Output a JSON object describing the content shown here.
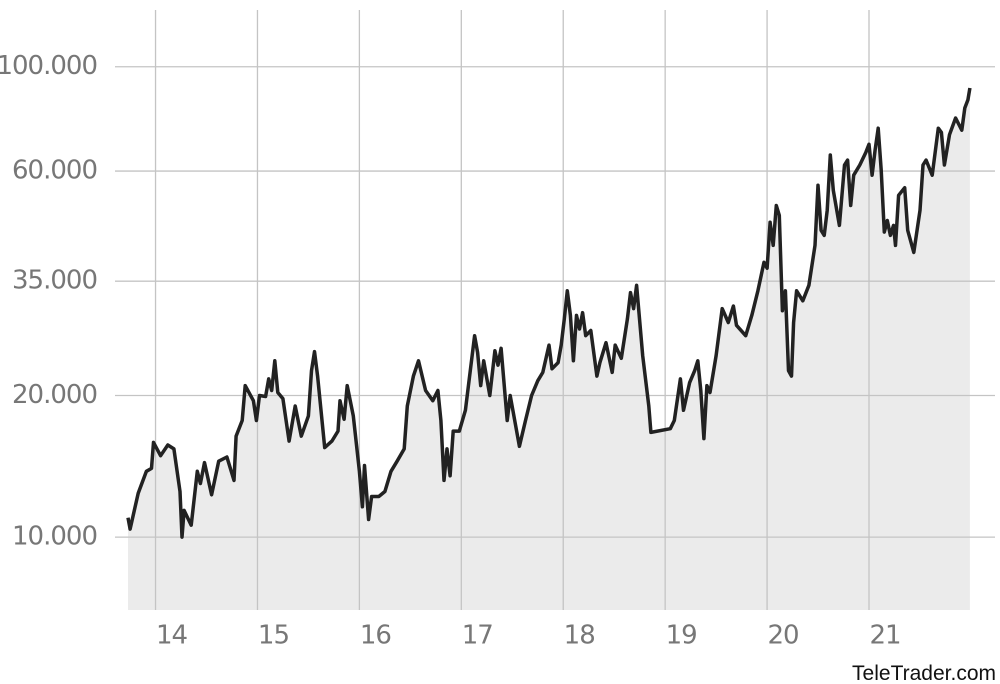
{
  "chart_data": {
    "type": "area-line",
    "watermark": "TeleTrader.com",
    "x": [
      13.73,
      13.75,
      13.83,
      13.91,
      13.96,
      13.98,
      14.05,
      14.12,
      14.18,
      14.24,
      14.26,
      14.28,
      14.35,
      14.41,
      14.44,
      14.48,
      14.55,
      14.62,
      14.7,
      14.77,
      14.79,
      14.85,
      14.88,
      14.96,
      14.99,
      15.02,
      15.08,
      15.11,
      15.14,
      15.17,
      15.2,
      15.25,
      15.31,
      15.37,
      15.43,
      15.5,
      15.53,
      15.56,
      15.59,
      15.66,
      15.73,
      15.79,
      15.81,
      15.85,
      15.88,
      15.94,
      16.0,
      16.03,
      16.05,
      16.09,
      16.12,
      16.19,
      16.25,
      16.31,
      16.37,
      16.44,
      16.47,
      16.53,
      16.58,
      16.65,
      16.72,
      16.77,
      16.8,
      16.83,
      16.86,
      16.89,
      16.92,
      16.98,
      17.04,
      17.1,
      17.13,
      17.16,
      17.19,
      17.22,
      17.28,
      17.33,
      17.36,
      17.39,
      17.45,
      17.48,
      17.57,
      17.63,
      17.69,
      17.75,
      17.8,
      17.86,
      17.89,
      17.95,
      17.98,
      18.01,
      18.04,
      18.07,
      18.1,
      18.13,
      18.16,
      18.19,
      18.22,
      18.27,
      18.33,
      18.36,
      18.42,
      18.48,
      18.51,
      18.57,
      18.63,
      18.66,
      18.69,
      18.72,
      18.78,
      18.84,
      18.86,
      19.05,
      19.09,
      19.15,
      19.18,
      19.24,
      19.29,
      19.32,
      19.35,
      19.38,
      19.41,
      19.44,
      19.5,
      19.56,
      19.62,
      19.67,
      19.7,
      19.79,
      19.85,
      19.91,
      19.97,
      20.0,
      20.03,
      20.06,
      20.09,
      20.12,
      20.15,
      20.18,
      20.21,
      20.24,
      20.26,
      20.29,
      20.35,
      20.41,
      20.47,
      20.5,
      20.53,
      20.56,
      20.59,
      20.62,
      20.65,
      20.71,
      20.76,
      20.79,
      20.82,
      20.85,
      20.91,
      20.97,
      21.0,
      21.03,
      21.06,
      21.09,
      21.12,
      21.15,
      21.18,
      21.21,
      21.24,
      21.26,
      21.29,
      21.35,
      21.38,
      21.44,
      21.5,
      21.53,
      21.56,
      21.62,
      21.68,
      21.71,
      21.74,
      21.79,
      21.85,
      21.91,
      21.94,
      21.97,
      21.99
    ],
    "series": [
      {
        "color": "#222222",
        "fill": "#ebebeb",
        "values": [
          11000,
          10400,
          12400,
          13800,
          14000,
          15900,
          14900,
          15700,
          15400,
          12500,
          10000,
          11400,
          10600,
          13800,
          13000,
          14400,
          12300,
          14500,
          14800,
          13200,
          16400,
          17700,
          21000,
          19500,
          17700,
          20000,
          19900,
          21700,
          20500,
          23700,
          20300,
          19700,
          16000,
          19000,
          16400,
          18100,
          22600,
          24800,
          22000,
          15500,
          16000,
          16800,
          19500,
          17800,
          21000,
          18100,
          13800,
          11600,
          14200,
          10900,
          12200,
          12200,
          12500,
          13800,
          14500,
          15400,
          19000,
          22000,
          23700,
          20500,
          19500,
          20500,
          17700,
          13200,
          15400,
          13500,
          16800,
          16800,
          18600,
          23700,
          26800,
          24700,
          21000,
          23700,
          20000,
          24900,
          23200,
          25200,
          17700,
          20000,
          15600,
          17700,
          20000,
          21500,
          22400,
          25600,
          22800,
          23500,
          25600,
          29100,
          33400,
          29600,
          23700,
          29600,
          27700,
          30000,
          26800,
          27500,
          22000,
          23500,
          25900,
          22400,
          25600,
          24000,
          29100,
          33100,
          30600,
          34300,
          24300,
          19000,
          16700,
          17000,
          17700,
          21700,
          18600,
          21300,
          22600,
          23700,
          20500,
          16200,
          21000,
          20300,
          24300,
          30600,
          28600,
          31000,
          28200,
          26800,
          29600,
          33400,
          38400,
          37300,
          46700,
          41700,
          50700,
          48300,
          30300,
          33400,
          22600,
          22000,
          28600,
          33400,
          31800,
          34300,
          41700,
          56000,
          44900,
          43800,
          49500,
          64900,
          54600,
          46000,
          61800,
          63300,
          50700,
          58800,
          61800,
          65800,
          68400,
          58800,
          66500,
          74000,
          60300,
          44500,
          47100,
          43800,
          46000,
          41700,
          53300,
          55300,
          44900,
          40300,
          49500,
          61800,
          63300,
          58800,
          74000,
          72500,
          61800,
          71700,
          77800,
          73300,
          81700,
          85000,
          90100
        ]
      }
    ],
    "xlim": [
      13.72,
      22.04
    ],
    "xticks": [
      14,
      15,
      16,
      17,
      18,
      19,
      20,
      21
    ],
    "ylim": [
      7000,
      132000
    ],
    "log_y": true,
    "yticks": [
      {
        "value": 10000,
        "label": "10.000"
      },
      {
        "value": 20000,
        "label": "20.000"
      },
      {
        "value": 35000,
        "label": "35.000"
      },
      {
        "value": 60000,
        "label": "60.000"
      },
      {
        "value": 100000,
        "label": "100.000"
      }
    ],
    "grid": true
  }
}
